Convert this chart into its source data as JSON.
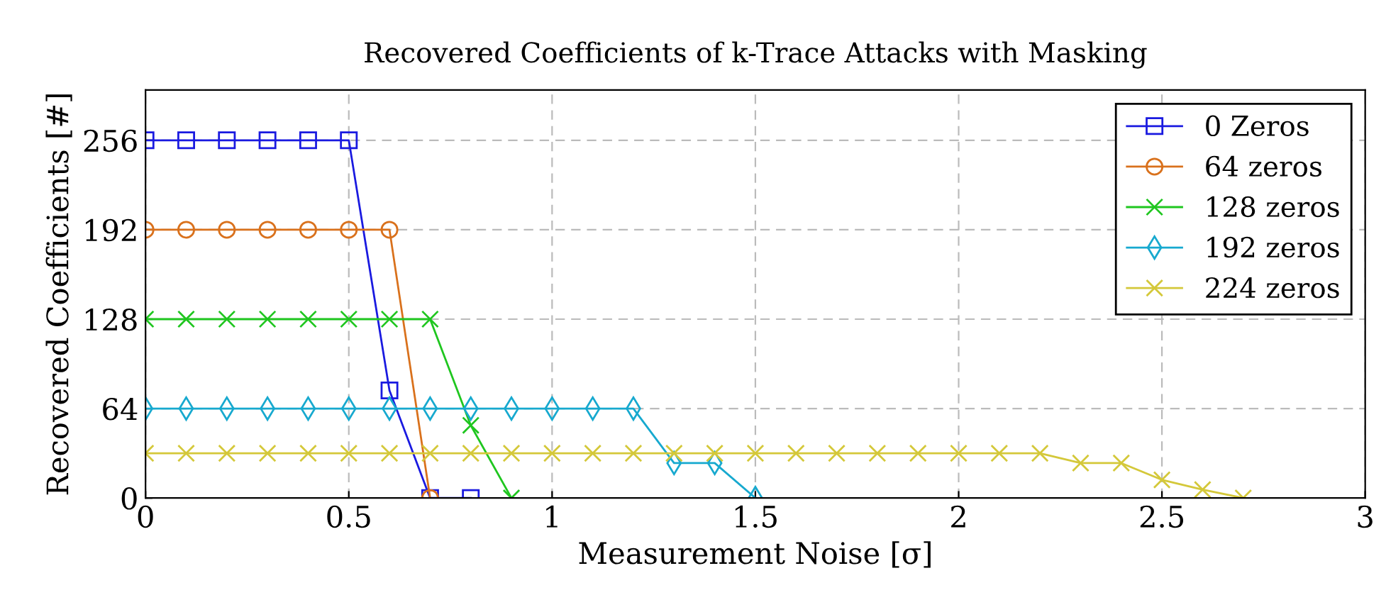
{
  "chart_data": {
    "type": "line",
    "title": "Recovered Coefficients of k-Trace Attacks with Masking",
    "xlabel": "Measurement Noise [σ]",
    "ylabel": "Recovered Coefficients [#]",
    "xlim": [
      0,
      3
    ],
    "xticks": [
      0,
      0.5,
      1,
      1.5,
      2,
      2.5,
      3
    ],
    "ylim": [
      0,
      292
    ],
    "yticks": [
      0,
      64,
      128,
      192,
      256
    ],
    "grid": true,
    "legend": "top right",
    "series": [
      {
        "name": "0 Zeros",
        "color": "#1a1ae0",
        "marker": "square",
        "x": [
          0,
          0.1,
          0.2,
          0.3,
          0.4,
          0.5,
          0.6,
          0.7,
          0.8
        ],
        "values": [
          256,
          256,
          256,
          256,
          256,
          256,
          77,
          0,
          0
        ]
      },
      {
        "name": "64 zeros",
        "color": "#d9711c",
        "marker": "circle",
        "x": [
          0,
          0.1,
          0.2,
          0.3,
          0.4,
          0.5,
          0.6,
          0.7
        ],
        "values": [
          192,
          192,
          192,
          192,
          192,
          192,
          192,
          0
        ]
      },
      {
        "name": "128 zeros",
        "color": "#1fc61f",
        "marker": "cross",
        "x": [
          0,
          0.1,
          0.2,
          0.3,
          0.4,
          0.5,
          0.6,
          0.7,
          0.8,
          0.9
        ],
        "values": [
          128,
          128,
          128,
          128,
          128,
          128,
          128,
          128,
          52,
          0
        ]
      },
      {
        "name": "192 zeros",
        "color": "#17a9cf",
        "marker": "diamond",
        "x": [
          0,
          0.1,
          0.2,
          0.3,
          0.4,
          0.5,
          0.6,
          0.7,
          0.8,
          0.9,
          1.0,
          1.1,
          1.2,
          1.3,
          1.4,
          1.5
        ],
        "values": [
          64,
          64,
          64,
          64,
          64,
          64,
          64,
          64,
          64,
          64,
          64,
          64,
          64,
          25,
          25,
          0
        ]
      },
      {
        "name": "224 zeros",
        "color": "#d4c83a",
        "marker": "cross",
        "x": [
          0,
          0.1,
          0.2,
          0.3,
          0.4,
          0.5,
          0.6,
          0.7,
          0.8,
          0.9,
          1.0,
          1.1,
          1.2,
          1.3,
          1.4,
          1.5,
          1.6,
          1.7,
          1.8,
          1.9,
          2.0,
          2.1,
          2.2,
          2.3,
          2.4,
          2.5,
          2.6,
          2.7
        ],
        "values": [
          32,
          32,
          32,
          32,
          32,
          32,
          32,
          32,
          32,
          32,
          32,
          32,
          32,
          32,
          32,
          32,
          32,
          32,
          32,
          32,
          32,
          32,
          32,
          25,
          25,
          13,
          6,
          0
        ]
      }
    ]
  }
}
